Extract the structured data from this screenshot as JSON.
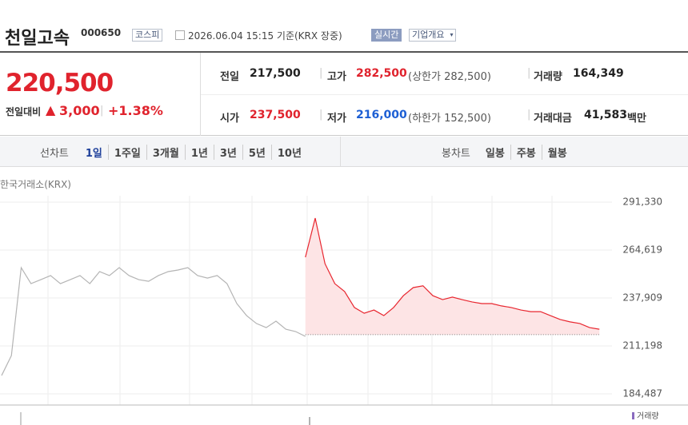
{
  "header": {
    "name": "천일고속",
    "code": "000650",
    "market": "코스피",
    "time": "2026.06.04 15:15 기준(KRX 장중)",
    "realtime": "실시간",
    "company": "기업개요"
  },
  "quote": {
    "price": "220,500",
    "change_label": "전일대비",
    "change": "3,000",
    "rate": "+1.38%",
    "fields": [
      {
        "label": "전일",
        "value": "217,500"
      },
      {
        "label": "고가",
        "value": "282,500",
        "note": "(상한가 282,500)"
      },
      {
        "label": "거래량",
        "value": "164,349"
      },
      {
        "label": "시가",
        "value": "237,500"
      },
      {
        "label": "저가",
        "value": "216,000",
        "note": "(하한가 152,500)"
      },
      {
        "label": "거래대금",
        "value": "41,583",
        "unit": "백만"
      }
    ]
  },
  "tabs": {
    "line_label": "선차트",
    "line": [
      "1일",
      "1주일",
      "3개월",
      "1년",
      "3년",
      "5년",
      "10년"
    ],
    "candle_label": "봉차트",
    "candle": [
      "일봉",
      "주봉",
      "월봉"
    ]
  },
  "chart_data": {
    "type": "line",
    "source": "한국거래소(KRX)",
    "volume_label": "거래량",
    "x": [
      0,
      1,
      2,
      3,
      4,
      5,
      6,
      7,
      8,
      9,
      10,
      11,
      12,
      13,
      14,
      15,
      16,
      17,
      18,
      19,
      20,
      21,
      22,
      23,
      24,
      25,
      26,
      27,
      28,
      29,
      30,
      31,
      32,
      33,
      34,
      35,
      36,
      37,
      38,
      39,
      40,
      41,
      42,
      43,
      44,
      45,
      46,
      47,
      48,
      49,
      50,
      51,
      52,
      53,
      54,
      55,
      56,
      57,
      58,
      59,
      60,
      61
    ],
    "xlim": [
      0,
      62
    ],
    "series": [
      {
        "color": "#b4b4b4",
        "values": [
          194700,
          205800,
          254800,
          245900,
          248100,
          250400,
          245900,
          248100,
          250400,
          245900,
          252600,
          250400,
          254800,
          250400,
          248100,
          247200,
          250400,
          252600,
          253500,
          254800,
          250400,
          249000,
          250400,
          245900,
          234800,
          228100,
          223700,
          221400,
          225000,
          220500,
          219200,
          216500,
          null,
          null,
          null,
          null,
          null,
          null,
          null,
          null,
          null,
          null,
          null,
          null,
          null,
          null,
          null,
          null,
          null,
          null,
          null,
          null,
          null,
          null,
          null,
          null,
          null,
          null,
          null,
          null,
          null,
          null
        ]
      },
      {
        "color": "#e8262f",
        "fill": "#fde4e5",
        "values": [
          null,
          null,
          null,
          null,
          null,
          null,
          null,
          null,
          null,
          null,
          null,
          null,
          null,
          null,
          null,
          null,
          null,
          null,
          null,
          null,
          null,
          null,
          null,
          null,
          null,
          null,
          null,
          null,
          null,
          null,
          null,
          260600,
          282400,
          257000,
          245900,
          241500,
          232600,
          229400,
          231200,
          228100,
          232600,
          239200,
          243700,
          244700,
          239200,
          237000,
          238400,
          237000,
          235700,
          234800,
          234800,
          233500,
          232600,
          231200,
          230300,
          230300,
          228100,
          225900,
          224600,
          223700,
          221400,
          220500
        ]
      }
    ],
    "baseline": 217500,
    "ylim": [
      179145,
      294890
    ],
    "yticks": [
      {
        "value": 291330,
        "label": "291,330"
      },
      {
        "value": 264619,
        "label": "264,619"
      },
      {
        "value": 237909,
        "label": "237,909"
      },
      {
        "value": 211198,
        "label": "211,198"
      },
      {
        "value": 184487,
        "label": "184,487"
      }
    ]
  }
}
